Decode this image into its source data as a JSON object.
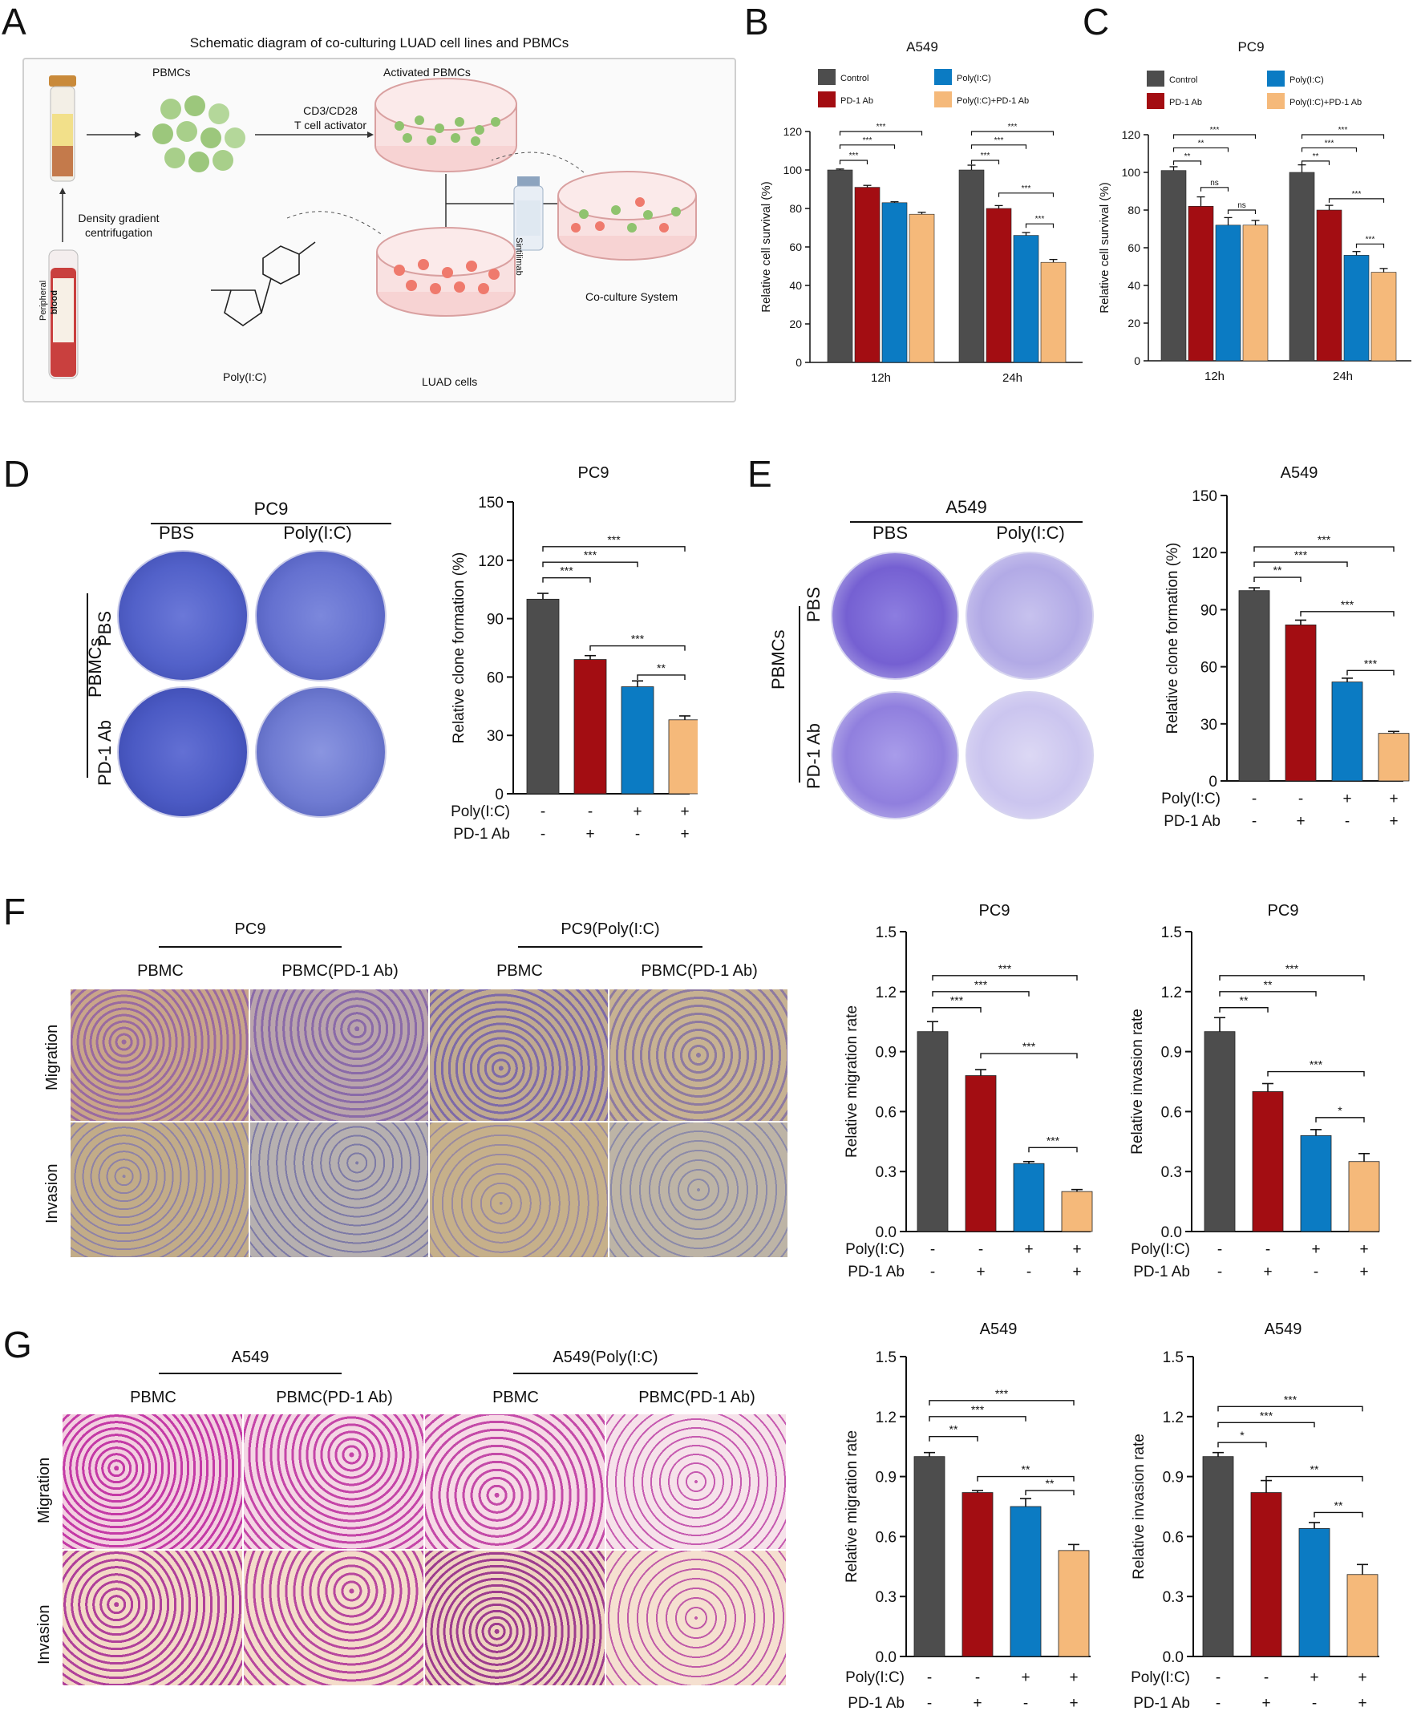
{
  "colors": {
    "control": "#4d4d4d",
    "pd1": "#a30d12",
    "polyic": "#0b7bc3",
    "combo": "#f5b97a"
  },
  "icons": [
    "tube-icon",
    "pbmc-cells-icon",
    "petri-dish-icon",
    "antibody-vial-icon",
    "blood-tube-icon",
    "polyic-structure-icon"
  ],
  "panels": {
    "A": {
      "letter": "A",
      "title": "Schematic diagram of co-culturing LUAD cell lines and PBMCs",
      "pbmcs": "PBMCs",
      "activated": "Activated PBMCs",
      "activator_1": "CD3/CD28",
      "activator_2": "T cell activator",
      "density_1": "Density gradient",
      "density_2": "centrifugation",
      "blood_1": "Peripheral",
      "blood_2": "blood",
      "vial": "Sintilimab",
      "coculture": "Co-culture System",
      "luad": "LUAD cells",
      "polyic": "Poly(I:C)"
    },
    "B": {
      "letter": "B"
    },
    "C": {
      "letter": "C"
    },
    "D": {
      "letter": "D",
      "group": "PC9",
      "col1": "PBS",
      "col2": "Poly(I:C)",
      "row1": "PBS",
      "row2": "PD-1 Ab",
      "side": "PBMCs"
    },
    "E": {
      "letter": "E",
      "group": "A549",
      "col1": "PBS",
      "col2": "Poly(I:C)",
      "row1": "PBS",
      "row2": "PD-1 Ab",
      "side": "PBMCs"
    },
    "F": {
      "letter": "F",
      "group1": "PC9",
      "group2": "PC9(Poly(I:C)",
      "col1": "PBMC",
      "col2": "PBMC(PD-1 Ab)",
      "col3": "PBMC",
      "col4": "PBMC(PD-1 Ab)",
      "row1": "Migration",
      "row2": "Invasion"
    },
    "G": {
      "letter": "G",
      "group1": "A549",
      "group2": "A549(Poly(I:C)",
      "col1": "PBMC",
      "col2": "PBMC(PD-1 Ab)",
      "col3": "PBMC",
      "col4": "PBMC(PD-1 Ab)",
      "row1": "Migration",
      "row2": "Invasion"
    }
  },
  "chart_data": [
    {
      "id": "B",
      "type": "bar",
      "title": "A549",
      "ylabel": "Relative cell survival (%)",
      "ylim": [
        0,
        120
      ],
      "yticks": [
        0,
        20,
        40,
        60,
        80,
        100,
        120
      ],
      "categories": [
        "12h",
        "24h"
      ],
      "legend": [
        "Control",
        "Poly(I:C)",
        "PD-1 Ab",
        "Poly(I:C)+PD-1 Ab"
      ],
      "series": [
        {
          "name": "Control",
          "values": [
            100,
            100
          ],
          "errors": [
            0.5,
            2.5
          ]
        },
        {
          "name": "PD-1 Ab",
          "values": [
            91,
            80
          ],
          "errors": [
            1,
            1.5
          ]
        },
        {
          "name": "Poly(I:C)",
          "values": [
            83,
            66
          ],
          "errors": [
            0.5,
            1.5
          ]
        },
        {
          "name": "Poly(I:C)+PD-1 Ab",
          "values": [
            77,
            52
          ],
          "errors": [
            1,
            1.5
          ]
        }
      ],
      "annotations": [
        {
          "g": 0,
          "a": 0,
          "b": 1,
          "y": 105,
          "t": "***"
        },
        {
          "g": 0,
          "a": 0,
          "b": 2,
          "y": 113,
          "t": "***"
        },
        {
          "g": 0,
          "a": 0,
          "b": 3,
          "y": 120,
          "t": "***"
        },
        {
          "g": 1,
          "a": 0,
          "b": 1,
          "y": 105,
          "t": "***"
        },
        {
          "g": 1,
          "a": 0,
          "b": 2,
          "y": 113,
          "t": "***"
        },
        {
          "g": 1,
          "a": 0,
          "b": 3,
          "y": 120,
          "t": "***"
        },
        {
          "g": 1,
          "a": 1,
          "b": 3,
          "y": 88,
          "t": "***"
        },
        {
          "g": 1,
          "a": 2,
          "b": 3,
          "y": 72,
          "t": "***"
        }
      ]
    },
    {
      "id": "C",
      "type": "bar",
      "title": "PC9",
      "ylabel": "Relative cell survival (%)",
      "ylim": [
        0,
        120
      ],
      "yticks": [
        0,
        20,
        40,
        60,
        80,
        100,
        120
      ],
      "categories": [
        "12h",
        "24h"
      ],
      "legend": [
        "Control",
        "Poly(I:C)",
        "PD-1 Ab",
        "Poly(I:C)+PD-1 Ab"
      ],
      "series": [
        {
          "name": "Control",
          "values": [
            101,
            100
          ],
          "errors": [
            2,
            4
          ]
        },
        {
          "name": "PD-1 Ab",
          "values": [
            82,
            80
          ],
          "errors": [
            5,
            2.5
          ]
        },
        {
          "name": "Poly(I:C)",
          "values": [
            72,
            56
          ],
          "errors": [
            4,
            2
          ]
        },
        {
          "name": "Poly(I:C)+PD-1 Ab",
          "values": [
            72,
            47
          ],
          "errors": [
            2.5,
            2
          ]
        }
      ],
      "annotations": [
        {
          "g": 0,
          "a": 0,
          "b": 1,
          "y": 106,
          "t": "**"
        },
        {
          "g": 0,
          "a": 0,
          "b": 2,
          "y": 113,
          "t": "**"
        },
        {
          "g": 0,
          "a": 0,
          "b": 3,
          "y": 120,
          "t": "***"
        },
        {
          "g": 0,
          "a": 1,
          "b": 2,
          "y": 92,
          "t": "ns"
        },
        {
          "g": 0,
          "a": 2,
          "b": 3,
          "y": 80,
          "t": "ns"
        },
        {
          "g": 1,
          "a": 0,
          "b": 1,
          "y": 106,
          "t": "**"
        },
        {
          "g": 1,
          "a": 0,
          "b": 2,
          "y": 113,
          "t": "***"
        },
        {
          "g": 1,
          "a": 0,
          "b": 3,
          "y": 120,
          "t": "***"
        },
        {
          "g": 1,
          "a": 1,
          "b": 3,
          "y": 86,
          "t": "***"
        },
        {
          "g": 1,
          "a": 2,
          "b": 3,
          "y": 62,
          "t": "***"
        }
      ]
    },
    {
      "id": "D",
      "type": "bar",
      "title": "PC9",
      "ylabel": "Relative clone formation (%)",
      "ylim": [
        0,
        150
      ],
      "yticks": [
        0,
        30,
        60,
        90,
        120,
        150
      ],
      "values": [
        100,
        69,
        55,
        38
      ],
      "errors": [
        3,
        2,
        3,
        2
      ],
      "treatments": [
        {
          "label": "Poly(I:C)",
          "signs": [
            "-",
            "-",
            "+",
            "+"
          ]
        },
        {
          "label": "PD-1 Ab",
          "signs": [
            "-",
            "+",
            "-",
            "+"
          ]
        }
      ],
      "annotations": [
        {
          "a": 0,
          "b": 1,
          "y": 111,
          "t": "***"
        },
        {
          "a": 0,
          "b": 2,
          "y": 119,
          "t": "***"
        },
        {
          "a": 0,
          "b": 3,
          "y": 127,
          "t": "***"
        },
        {
          "a": 1,
          "b": 3,
          "y": 76,
          "t": "***"
        },
        {
          "a": 2,
          "b": 3,
          "y": 61,
          "t": "**"
        }
      ]
    },
    {
      "id": "E",
      "type": "bar",
      "title": "A549",
      "ylabel": "Relative clone formation (%)",
      "ylim": [
        0,
        150
      ],
      "yticks": [
        0,
        30,
        60,
        90,
        120,
        150
      ],
      "values": [
        100,
        82,
        52,
        25
      ],
      "errors": [
        1.5,
        2.5,
        2,
        1
      ],
      "treatments": [
        {
          "label": "Poly(I:C)",
          "signs": [
            "-",
            "-",
            "+",
            "+"
          ]
        },
        {
          "label": "PD-1 Ab",
          "signs": [
            "-",
            "+",
            "-",
            "+"
          ]
        }
      ],
      "annotations": [
        {
          "a": 0,
          "b": 1,
          "y": 107,
          "t": "**"
        },
        {
          "a": 0,
          "b": 2,
          "y": 115,
          "t": "***"
        },
        {
          "a": 0,
          "b": 3,
          "y": 123,
          "t": "***"
        },
        {
          "a": 1,
          "b": 3,
          "y": 89,
          "t": "***"
        },
        {
          "a": 2,
          "b": 3,
          "y": 58,
          "t": "***"
        }
      ]
    },
    {
      "id": "F1",
      "type": "bar",
      "title": "PC9",
      "ylabel": "Relative migration rate",
      "ylim": [
        0,
        1.5
      ],
      "yticks": [
        "0.0",
        "0.3",
        "0.6",
        "0.9",
        "1.2",
        "1.5"
      ],
      "values": [
        1.0,
        0.78,
        0.34,
        0.2
      ],
      "errors": [
        0.05,
        0.03,
        0.01,
        0.01
      ],
      "treatments": [
        {
          "label": "Poly(I:C)",
          "signs": [
            "-",
            "-",
            "+",
            "+"
          ]
        },
        {
          "label": "PD-1 Ab",
          "signs": [
            "-",
            "+",
            "-",
            "+"
          ]
        }
      ],
      "annotations": [
        {
          "a": 0,
          "b": 1,
          "y": 1.12,
          "t": "***"
        },
        {
          "a": 0,
          "b": 2,
          "y": 1.2,
          "t": "***"
        },
        {
          "a": 0,
          "b": 3,
          "y": 1.28,
          "t": "***"
        },
        {
          "a": 1,
          "b": 3,
          "y": 0.89,
          "t": "***"
        },
        {
          "a": 2,
          "b": 3,
          "y": 0.42,
          "t": "***"
        }
      ]
    },
    {
      "id": "F2",
      "type": "bar",
      "title": "PC9",
      "ylabel": "Relative invasion rate",
      "ylim": [
        0,
        1.5
      ],
      "yticks": [
        "0.0",
        "0.3",
        "0.6",
        "0.9",
        "1.2",
        "1.5"
      ],
      "values": [
        1.0,
        0.7,
        0.48,
        0.35
      ],
      "errors": [
        0.07,
        0.04,
        0.03,
        0.04
      ],
      "treatments": [
        {
          "label": "Poly(I:C)",
          "signs": [
            "-",
            "-",
            "+",
            "+"
          ]
        },
        {
          "label": "PD-1 Ab",
          "signs": [
            "-",
            "+",
            "-",
            "+"
          ]
        }
      ],
      "annotations": [
        {
          "a": 0,
          "b": 1,
          "y": 1.12,
          "t": "**"
        },
        {
          "a": 0,
          "b": 2,
          "y": 1.2,
          "t": "**"
        },
        {
          "a": 0,
          "b": 3,
          "y": 1.28,
          "t": "***"
        },
        {
          "a": 1,
          "b": 3,
          "y": 0.8,
          "t": "***"
        },
        {
          "a": 2,
          "b": 3,
          "y": 0.57,
          "t": "*"
        }
      ]
    },
    {
      "id": "G1",
      "type": "bar",
      "title": "A549",
      "ylabel": "Relative migration rate",
      "ylim": [
        0,
        1.5
      ],
      "yticks": [
        "0.0",
        "0.3",
        "0.6",
        "0.9",
        "1.2",
        "1.5"
      ],
      "values": [
        1.0,
        0.82,
        0.75,
        0.53
      ],
      "errors": [
        0.02,
        0.01,
        0.04,
        0.03
      ],
      "treatments": [
        {
          "label": "Poly(I:C)",
          "signs": [
            "-",
            "-",
            "+",
            "+"
          ]
        },
        {
          "label": "PD-1 Ab",
          "signs": [
            "-",
            "+",
            "-",
            "+"
          ]
        }
      ],
      "annotations": [
        {
          "a": 0,
          "b": 1,
          "y": 1.1,
          "t": "**"
        },
        {
          "a": 0,
          "b": 2,
          "y": 1.2,
          "t": "***"
        },
        {
          "a": 0,
          "b": 3,
          "y": 1.28,
          "t": "***"
        },
        {
          "a": 1,
          "b": 3,
          "y": 0.9,
          "t": "**"
        },
        {
          "a": 2,
          "b": 3,
          "y": 0.83,
          "t": "**"
        }
      ]
    },
    {
      "id": "G2",
      "type": "bar",
      "title": "A549",
      "ylabel": "Relative invasion rate",
      "ylim": [
        0,
        1.5
      ],
      "yticks": [
        "0.0",
        "0.3",
        "0.6",
        "0.9",
        "1.2",
        "1.5"
      ],
      "values": [
        1.0,
        0.82,
        0.64,
        0.41
      ],
      "errors": [
        0.02,
        0.06,
        0.03,
        0.05
      ],
      "treatments": [
        {
          "label": "Poly(I:C)",
          "signs": [
            "-",
            "-",
            "+",
            "+"
          ]
        },
        {
          "label": "PD-1 Ab",
          "signs": [
            "-",
            "+",
            "-",
            "+"
          ]
        }
      ],
      "annotations": [
        {
          "a": 0,
          "b": 1,
          "y": 1.07,
          "t": "*"
        },
        {
          "a": 0,
          "b": 2,
          "y": 1.17,
          "t": "***"
        },
        {
          "a": 0,
          "b": 3,
          "y": 1.25,
          "t": "***"
        },
        {
          "a": 1,
          "b": 3,
          "y": 0.9,
          "t": "**"
        },
        {
          "a": 2,
          "b": 3,
          "y": 0.72,
          "t": "**"
        }
      ]
    }
  ]
}
